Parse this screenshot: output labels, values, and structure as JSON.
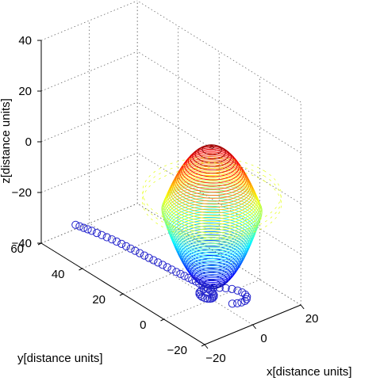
{
  "chart_data": {
    "type": "3d-line",
    "title": "",
    "xlabel": "x[distance units]",
    "ylabel": "y[distance units]",
    "zlabel": "z[distance units]",
    "xlim": [
      -20,
      20
    ],
    "ylim": [
      -20,
      60
    ],
    "zlim": [
      -40,
      40
    ],
    "x_ticks": [
      "−20",
      "0",
      "20"
    ],
    "y_ticks": [
      "−20",
      "0",
      "20",
      "40",
      "60"
    ],
    "z_ticks": [
      "−40",
      "−20",
      "0",
      "20",
      "40"
    ],
    "grid": true,
    "colormap": "jet",
    "series": [
      {
        "style": "open-circle markers, blue",
        "color": "#2222cc",
        "description_points": "spiral descending from y=62 to near origin",
        "points": [
          [
            -4,
            62,
            -40
          ],
          [
            -3.6,
            60.5,
            -40
          ],
          [
            -3.2,
            59,
            -40
          ],
          [
            -2.8,
            57.5,
            -40
          ],
          [
            -2.4,
            56,
            -40
          ],
          [
            -2,
            54,
            -40
          ],
          [
            -1.6,
            52,
            -40
          ],
          [
            -1.2,
            50,
            -40
          ],
          [
            -0.8,
            48,
            -40
          ],
          [
            -0.5,
            46,
            -40
          ],
          [
            -0.2,
            44,
            -40
          ],
          [
            0,
            42,
            -40
          ],
          [
            0.2,
            40,
            -40
          ],
          [
            0.4,
            38,
            -40
          ],
          [
            0.6,
            36,
            -40
          ],
          [
            0.8,
            34,
            -40
          ],
          [
            1,
            32,
            -40
          ],
          [
            1.2,
            30,
            -40
          ],
          [
            1.4,
            28,
            -40
          ],
          [
            1.6,
            26,
            -40
          ],
          [
            1.8,
            24,
            -40
          ],
          [
            2,
            22,
            -40
          ],
          [
            2.2,
            20,
            -40
          ],
          [
            2.4,
            18.2,
            -40
          ],
          [
            2.6,
            16.5,
            -40
          ],
          [
            2.8,
            14.8,
            -40
          ],
          [
            3,
            13.2,
            -40
          ],
          [
            3.2,
            11.6,
            -40
          ],
          [
            3.3,
            10,
            -40
          ],
          [
            3.4,
            8.5,
            -40
          ],
          [
            3.5,
            7.1,
            -40
          ],
          [
            3.4,
            5.8,
            -40
          ],
          [
            3.2,
            4.6,
            -40
          ],
          [
            3,
            3.4,
            -40
          ],
          [
            2.6,
            2.4,
            -40
          ],
          [
            2.2,
            1.6,
            -40
          ],
          [
            1.6,
            1,
            -40
          ],
          [
            1,
            0.6,
            -40
          ],
          [
            0.4,
            0.5,
            -40
          ],
          [
            -0.2,
            0.7,
            -40
          ],
          [
            -0.8,
            1.2,
            -40
          ],
          [
            -1.2,
            2,
            -40
          ],
          [
            -1.4,
            3,
            -40
          ],
          [
            -1.3,
            4,
            -40
          ],
          [
            -0.9,
            5,
            -40
          ],
          [
            -0.2,
            5.8,
            -40
          ],
          [
            0.8,
            6.2,
            -40
          ],
          [
            2,
            6.3,
            -40
          ],
          [
            3.4,
            6,
            -40
          ],
          [
            5,
            5.2,
            -40
          ],
          [
            6.6,
            4,
            -40
          ],
          [
            8,
            2.6,
            -40
          ],
          [
            9.2,
            1,
            -40
          ],
          [
            10,
            -0.8,
            -40
          ],
          [
            10.4,
            -2.6,
            -40
          ],
          [
            10.3,
            -4.2,
            -40
          ],
          [
            9.8,
            -5.6,
            -40
          ],
          [
            8.8,
            -6.6,
            -40
          ],
          [
            7.6,
            -7.2,
            -40
          ],
          [
            6.2,
            -7.2,
            -40
          ],
          [
            4.8,
            -6.8,
            -40
          ],
          [
            3.4,
            -6,
            -40
          ]
        ]
      },
      {
        "style": "stacked horizontal rings (contour3 of mexican-hat surface), jet colormap by z",
        "ring_centers": [
          [
            0,
            0,
            -35
          ],
          [
            0,
            0,
            20
          ]
        ],
        "peak_z": 20,
        "trough_z": -35,
        "ring_count": 60
      }
    ]
  }
}
